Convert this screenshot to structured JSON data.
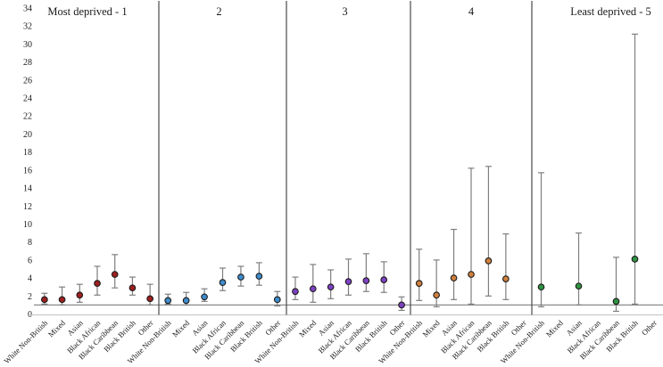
{
  "chart_data": {
    "type": "scatter",
    "subtype": "forest-plot-error-bars",
    "title": "",
    "ylabel": "",
    "xlabel": "",
    "y_axis": {
      "min": 0,
      "max": 34,
      "step": 2,
      "grid": false
    },
    "reference_line_y": 1,
    "categories": [
      "White Non-British",
      "Mixed",
      "Asian",
      "Black African",
      "Black Caribbean",
      "Black British",
      "Other"
    ],
    "panels": [
      {
        "label": "Most deprived - 1",
        "color": "#9e1f1f",
        "points": [
          {
            "category": "White Non-British",
            "value": 1.6,
            "lo": 1.1,
            "hi": 2.3
          },
          {
            "category": "Mixed",
            "value": 1.6,
            "lo": 1.0,
            "hi": 3.0
          },
          {
            "category": "Asian",
            "value": 2.1,
            "lo": 1.3,
            "hi": 3.3
          },
          {
            "category": "Black African",
            "value": 3.4,
            "lo": 2.1,
            "hi": 5.3
          },
          {
            "category": "Black Caribbean",
            "value": 4.4,
            "lo": 2.9,
            "hi": 6.6
          },
          {
            "category": "Black British",
            "value": 2.9,
            "lo": 2.1,
            "hi": 4.1
          },
          {
            "category": "Other",
            "value": 1.7,
            "lo": 1.0,
            "hi": 3.3
          }
        ]
      },
      {
        "label": "2",
        "color": "#3f8ccc",
        "points": [
          {
            "category": "White Non-British",
            "value": 1.5,
            "lo": 1.1,
            "hi": 2.2
          },
          {
            "category": "Mixed",
            "value": 1.5,
            "lo": 1.0,
            "hi": 2.4
          },
          {
            "category": "Asian",
            "value": 1.9,
            "lo": 1.4,
            "hi": 2.8
          },
          {
            "category": "Black African",
            "value": 3.5,
            "lo": 2.6,
            "hi": 5.1
          },
          {
            "category": "Black Caribbean",
            "value": 4.1,
            "lo": 3.1,
            "hi": 5.3
          },
          {
            "category": "Black British",
            "value": 4.2,
            "lo": 3.2,
            "hi": 5.7
          },
          {
            "category": "Other",
            "value": 1.6,
            "lo": 0.9,
            "hi": 2.5
          }
        ]
      },
      {
        "label": "3",
        "color": "#7d42c2",
        "points": [
          {
            "category": "White Non-British",
            "value": 2.5,
            "lo": 1.6,
            "hi": 4.1
          },
          {
            "category": "Mixed",
            "value": 2.8,
            "lo": 1.3,
            "hi": 5.5
          },
          {
            "category": "Asian",
            "value": 3.0,
            "lo": 1.7,
            "hi": 4.9
          },
          {
            "category": "Black African",
            "value": 3.6,
            "lo": 2.1,
            "hi": 6.1
          },
          {
            "category": "Black Caribbean",
            "value": 3.7,
            "lo": 2.5,
            "hi": 6.7
          },
          {
            "category": "Black British",
            "value": 3.8,
            "lo": 2.4,
            "hi": 5.8
          },
          {
            "category": "Other",
            "value": 1.0,
            "lo": 0.4,
            "hi": 1.9
          }
        ]
      },
      {
        "label": "4",
        "color": "#d0803e",
        "points": [
          {
            "category": "White Non-British",
            "value": 3.4,
            "lo": 1.5,
            "hi": 7.2
          },
          {
            "category": "Mixed",
            "value": 2.1,
            "lo": 0.8,
            "hi": 6.0
          },
          {
            "category": "Asian",
            "value": 4.0,
            "lo": 1.6,
            "hi": 9.4
          },
          {
            "category": "Black African",
            "value": 4.4,
            "lo": 1.1,
            "hi": 16.2
          },
          {
            "category": "Black Caribbean",
            "value": 5.9,
            "lo": 2.0,
            "hi": 16.4
          },
          {
            "category": "Black British",
            "value": 3.9,
            "lo": 1.6,
            "hi": 8.9
          },
          {
            "category": "Other",
            "value": null,
            "lo": null,
            "hi": null
          }
        ]
      },
      {
        "label": "Least deprived - 5",
        "color": "#2f9140",
        "points": [
          {
            "category": "White Non-British",
            "value": 3.0,
            "lo": 0.8,
            "hi": 15.7
          },
          {
            "category": "Mixed",
            "value": null,
            "lo": null,
            "hi": null
          },
          {
            "category": "Asian",
            "value": 3.1,
            "lo": 1.0,
            "hi": 9.0
          },
          {
            "category": "Black African",
            "value": null,
            "lo": null,
            "hi": null
          },
          {
            "category": "Black Caribbean",
            "value": 1.4,
            "lo": 0.3,
            "hi": 6.3
          },
          {
            "category": "Black British",
            "value": 6.1,
            "lo": 1.1,
            "hi": 31.1
          },
          {
            "category": "Other",
            "value": null,
            "lo": null,
            "hi": null
          }
        ]
      }
    ],
    "colors": {
      "error_bar": "#7f7f7f",
      "marker_outline": "#1b1b1b",
      "panel_divider": "#4a4a4a",
      "reference_line": "#8a8a8a",
      "baseline": "#c9c9c9",
      "text": "#1a1a1a"
    }
  }
}
